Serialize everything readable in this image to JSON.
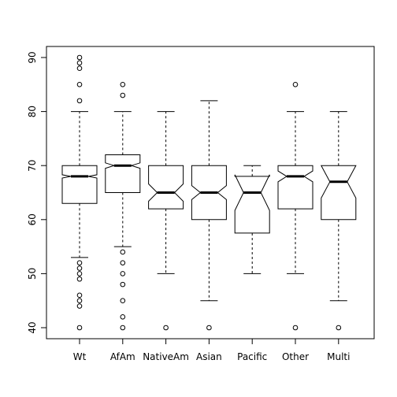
{
  "chart_data": {
    "type": "boxplot",
    "notched": true,
    "title": "",
    "xlabel": "",
    "ylabel": "",
    "ylim": [
      38.5,
      91.5
    ],
    "yticks": [
      40,
      50,
      60,
      70,
      80,
      90
    ],
    "categories": [
      "Wt",
      "AfAm",
      "NativeAm",
      "Asian",
      "Pacific",
      "Other",
      "Multi"
    ],
    "boxes": [
      {
        "name": "Wt",
        "q1": 63,
        "median": 68,
        "q3": 70,
        "whisker_low": 53,
        "whisker_high": 80,
        "notch": [
          67.7,
          68.3
        ],
        "outliers": [
          90,
          89,
          88,
          85,
          82,
          52,
          51,
          50,
          49,
          46,
          45,
          44,
          40
        ]
      },
      {
        "name": "AfAm",
        "q1": 65,
        "median": 70,
        "q3": 72,
        "whisker_low": 55,
        "whisker_high": 80,
        "notch": [
          69.5,
          70.5
        ],
        "outliers": [
          85,
          83,
          54,
          52,
          50,
          48,
          45,
          42,
          40
        ]
      },
      {
        "name": "NativeAm",
        "q1": 62,
        "median": 65,
        "q3": 70,
        "whisker_low": 50,
        "whisker_high": 80,
        "notch": [
          63.4,
          66.6
        ],
        "outliers": [
          40
        ]
      },
      {
        "name": "Asian",
        "q1": 60,
        "median": 65,
        "q3": 70,
        "whisker_low": 45,
        "whisker_high": 82,
        "notch": [
          63.7,
          66.3
        ],
        "outliers": [
          40
        ]
      },
      {
        "name": "Pacific",
        "q1": 57.5,
        "median": 65,
        "q3": 68,
        "whisker_low": 50,
        "whisker_high": 70,
        "notch": [
          61.7,
          68.3
        ],
        "outliers": []
      },
      {
        "name": "Other",
        "q1": 62,
        "median": 68,
        "q3": 70,
        "whisker_low": 50,
        "whisker_high": 80,
        "notch": [
          67.0,
          69.0
        ],
        "outliers": [
          85,
          40
        ]
      },
      {
        "name": "Multi",
        "q1": 60,
        "median": 67,
        "q3": 70,
        "whisker_low": 45,
        "whisker_high": 80,
        "notch": [
          64.0,
          70.0
        ],
        "outliers": [
          40
        ]
      }
    ],
    "grid": false,
    "legend": "none"
  }
}
